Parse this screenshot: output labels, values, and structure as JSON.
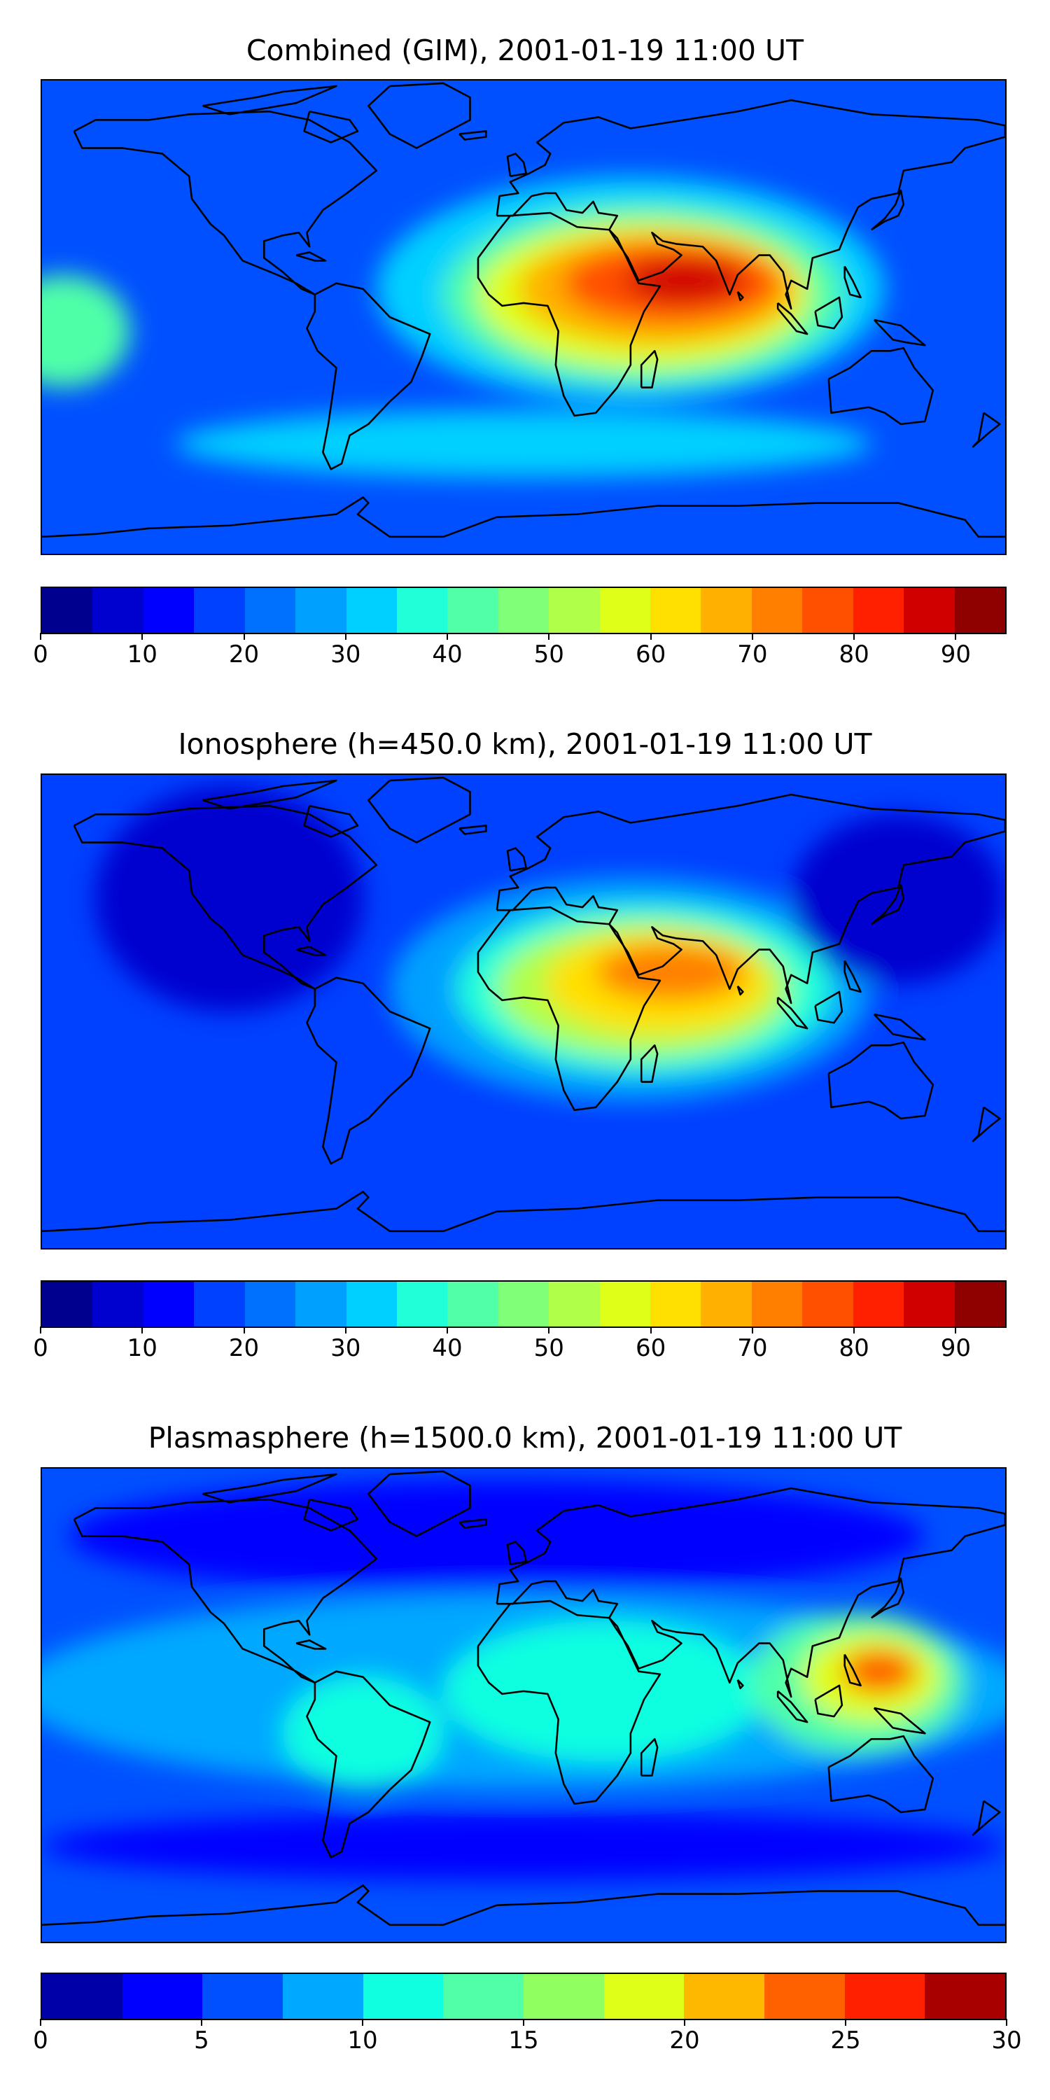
{
  "panels": [
    {
      "title": "Combined (GIM), 2001-01-19 11:00 UT",
      "colorbar": {
        "colors": [
          "#00008f",
          "#0000cf",
          "#0000ff",
          "#0040ff",
          "#0070ff",
          "#00a0ff",
          "#00d0ff",
          "#20ffd8",
          "#50ffa8",
          "#80ff78",
          "#b0ff48",
          "#e0ff18",
          "#ffe000",
          "#ffb000",
          "#ff8000",
          "#ff5000",
          "#ff2000",
          "#d00000",
          "#8f0000"
        ],
        "range": [
          0,
          95
        ],
        "ticks": [
          "0",
          "10",
          "20",
          "30",
          "40",
          "50",
          "60",
          "70",
          "80",
          "90"
        ],
        "tick_values": [
          0,
          10,
          20,
          30,
          40,
          50,
          60,
          70,
          80,
          90
        ]
      },
      "field": {
        "background": "#0050ff",
        "blobs": [
          {
            "lon": 40,
            "lat": 10,
            "rx": 95,
            "ry": 40,
            "color": "#00d0ff"
          },
          {
            "lon": 45,
            "lat": 8,
            "rx": 75,
            "ry": 32,
            "color": "#50ffa8"
          },
          {
            "lon": 45,
            "lat": 8,
            "rx": 62,
            "ry": 26,
            "color": "#e0ff18"
          },
          {
            "lon": 50,
            "lat": 10,
            "rx": 52,
            "ry": 20,
            "color": "#ffb000"
          },
          {
            "lon": 55,
            "lat": 12,
            "rx": 40,
            "ry": 14,
            "color": "#ff5000"
          },
          {
            "lon": 60,
            "lat": 13,
            "rx": 22,
            "ry": 8,
            "color": "#d00000"
          },
          {
            "lon": -172,
            "lat": -5,
            "rx": 25,
            "ry": 20,
            "color": "#50ffa8"
          },
          {
            "lon": 0,
            "lat": -45,
            "rx": 130,
            "ry": 12,
            "color": "#00d0ff"
          }
        ]
      }
    },
    {
      "title": "Ionosphere  (h=450.0 km), 2001-01-19 11:00 UT",
      "colorbar": {
        "colors": [
          "#00008f",
          "#0000cf",
          "#0000ff",
          "#0040ff",
          "#0070ff",
          "#00a0ff",
          "#00d0ff",
          "#20ffd8",
          "#50ffa8",
          "#80ff78",
          "#b0ff48",
          "#e0ff18",
          "#ffe000",
          "#ffb000",
          "#ff8000",
          "#ff5000",
          "#ff2000",
          "#d00000",
          "#8f0000"
        ],
        "range": [
          0,
          95
        ],
        "ticks": [
          "0",
          "10",
          "20",
          "30",
          "40",
          "50",
          "60",
          "70",
          "80",
          "90"
        ],
        "tick_values": [
          0,
          10,
          20,
          30,
          40,
          50,
          60,
          70,
          80,
          90
        ]
      },
      "field": {
        "background": "#0040ff",
        "blobs": [
          {
            "lon": -110,
            "lat": 40,
            "rx": 50,
            "ry": 40,
            "color": "#0000cf"
          },
          {
            "lon": 40,
            "lat": 8,
            "rx": 90,
            "ry": 40,
            "color": "#00a0ff"
          },
          {
            "lon": 45,
            "lat": 8,
            "rx": 70,
            "ry": 30,
            "color": "#20ffd8"
          },
          {
            "lon": 45,
            "lat": 8,
            "rx": 55,
            "ry": 24,
            "color": "#b0ff48"
          },
          {
            "lon": 50,
            "lat": 10,
            "rx": 42,
            "ry": 18,
            "color": "#ffe000"
          },
          {
            "lon": 55,
            "lat": 14,
            "rx": 28,
            "ry": 10,
            "color": "#ff8000"
          },
          {
            "lon": 140,
            "lat": 40,
            "rx": 40,
            "ry": 30,
            "color": "#0000cf"
          }
        ]
      }
    },
    {
      "title": "Plasmasphere (h=1500.0 km), 2001-01-19 11:00 UT",
      "colorbar": {
        "colors": [
          "#0000a8",
          "#0000ff",
          "#0050ff",
          "#00a8ff",
          "#10ffe0",
          "#50ffa8",
          "#90ff60",
          "#e0ff18",
          "#ffb800",
          "#ff6000",
          "#ff2000",
          "#a80000"
        ],
        "range": [
          0,
          30
        ],
        "ticks": [
          "0",
          "5",
          "10",
          "15",
          "20",
          "25",
          "30"
        ],
        "tick_values": [
          0,
          5,
          10,
          15,
          20,
          25,
          30
        ]
      },
      "field": {
        "background": "#0050ff",
        "blobs": [
          {
            "lon": -10,
            "lat": 60,
            "rx": 160,
            "ry": 20,
            "color": "#0000ff"
          },
          {
            "lon": 0,
            "lat": 5,
            "rx": 190,
            "ry": 35,
            "color": "#00a8ff"
          },
          {
            "lon": 30,
            "lat": 5,
            "rx": 60,
            "ry": 25,
            "color": "#10ffe0"
          },
          {
            "lon": 125,
            "lat": 8,
            "rx": 40,
            "ry": 25,
            "color": "#50ffa8"
          },
          {
            "lon": 130,
            "lat": 10,
            "rx": 26,
            "ry": 16,
            "color": "#e0ff18"
          },
          {
            "lon": 133,
            "lat": 12,
            "rx": 14,
            "ry": 8,
            "color": "#ff6000"
          },
          {
            "lon": -60,
            "lat": -10,
            "rx": 30,
            "ry": 20,
            "color": "#10ffe0"
          },
          {
            "lon": 0,
            "lat": -50,
            "rx": 180,
            "ry": 12,
            "color": "#0000ff"
          }
        ]
      }
    }
  ]
}
